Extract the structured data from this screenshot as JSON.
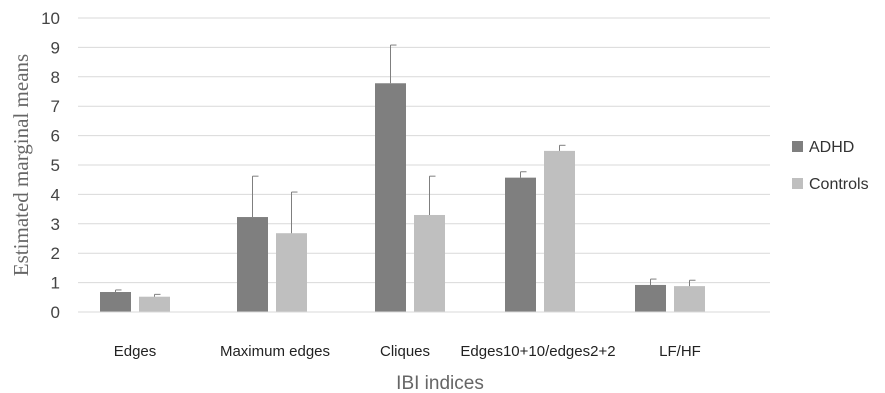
{
  "chart_data": {
    "type": "bar",
    "title": "",
    "xlabel": "IBI indices",
    "ylabel": "Estimated marginal means",
    "ylim": [
      0,
      10
    ],
    "yticks": [
      0,
      1,
      2,
      3,
      4,
      5,
      6,
      7,
      8,
      9,
      10
    ],
    "grid": true,
    "legend_position": "right",
    "categories": [
      "Edges",
      "Maximum edges",
      "Cliques",
      "Edges10+10/edges2+2",
      "LF/HF"
    ],
    "series": [
      {
        "name": "ADHD",
        "color": "#7f7f7f",
        "values": [
          0.68,
          3.23,
          7.78,
          4.57,
          0.92
        ],
        "error_upper": [
          0.75,
          4.62,
          9.08,
          4.77,
          1.12
        ]
      },
      {
        "name": "Controls",
        "color": "#bfbfbf",
        "values": [
          0.52,
          2.68,
          3.3,
          5.48,
          0.88
        ],
        "error_upper": [
          0.6,
          4.08,
          4.62,
          5.67,
          1.08
        ]
      }
    ]
  }
}
